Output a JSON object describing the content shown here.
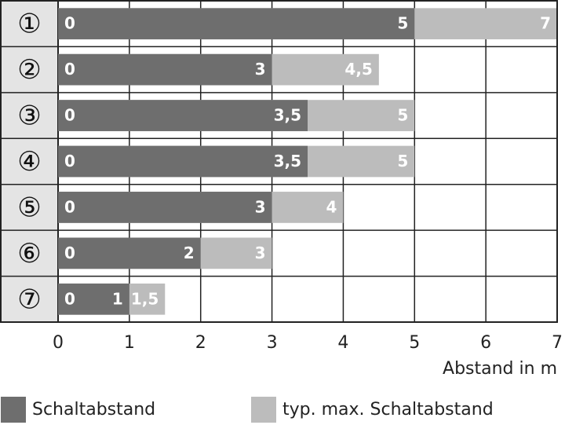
{
  "chart_data": {
    "type": "overlay-barh",
    "categories": [
      "①",
      "②",
      "③",
      "④",
      "⑤",
      "⑥",
      "⑦"
    ],
    "series": [
      {
        "name": "typ. max. Schaltabstand",
        "color": "#bcbcbc",
        "values": [
          7,
          4.5,
          5,
          5,
          4,
          3,
          1.5
        ],
        "value_labels": [
          "7",
          "4,5",
          "5",
          "5",
          "4",
          "3",
          "1,5"
        ]
      },
      {
        "name": "Schaltabstand",
        "color": "#6e6e6e",
        "values": [
          5,
          3,
          3.5,
          3.5,
          3,
          2,
          1
        ],
        "value_labels": [
          "5",
          "3",
          "3,5",
          "3,5",
          "3",
          "2",
          "1"
        ]
      }
    ],
    "xlim": [
      0,
      7
    ],
    "xticks": [
      0,
      1,
      2,
      3,
      4,
      5,
      6,
      7
    ],
    "xlabel": "Abstand in m",
    "grid": true,
    "legend": "bottom"
  }
}
